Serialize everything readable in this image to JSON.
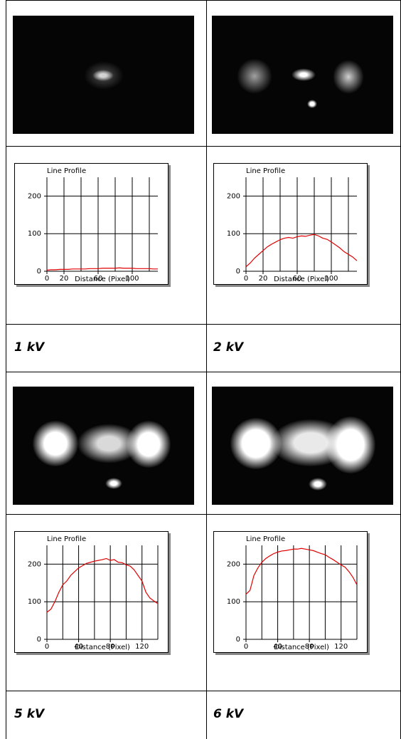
{
  "chart_data": [
    {
      "type": "line",
      "title": "Line Profile",
      "xlabel": "Distance (Pixel)",
      "xlim": [
        0,
        130
      ],
      "xticks": [
        0,
        20,
        60,
        100
      ],
      "xgrid": [
        20,
        40,
        60,
        80,
        100,
        120
      ],
      "ylim": [
        0,
        250
      ],
      "yticks": [
        0,
        100,
        200
      ],
      "x": [
        0,
        5,
        10,
        15,
        20,
        25,
        30,
        35,
        40,
        45,
        50,
        55,
        60,
        65,
        70,
        75,
        80,
        85,
        90,
        95,
        100,
        105,
        110,
        115,
        120,
        125,
        130
      ],
      "series": [
        {
          "color": "#e00000",
          "values": [
            3,
            4,
            4,
            5,
            5,
            5,
            6,
            6,
            6,
            6,
            7,
            7,
            7,
            8,
            8,
            8,
            8,
            9,
            8,
            8,
            8,
            7,
            7,
            7,
            7,
            6,
            6
          ]
        }
      ]
    },
    {
      "type": "line",
      "title": "Line Profile",
      "xlabel": "Distance (Pixel)",
      "xlim": [
        0,
        130
      ],
      "xticks": [
        0,
        20,
        60,
        100
      ],
      "xgrid": [
        20,
        40,
        60,
        80,
        100,
        120
      ],
      "ylim": [
        0,
        250
      ],
      "yticks": [
        0,
        100,
        200
      ],
      "x": [
        0,
        5,
        10,
        15,
        20,
        25,
        30,
        35,
        40,
        45,
        50,
        55,
        60,
        65,
        70,
        75,
        80,
        85,
        90,
        95,
        100,
        105,
        110,
        115,
        120,
        125,
        130
      ],
      "series": [
        {
          "color": "#e00000",
          "values": [
            12,
            22,
            35,
            45,
            55,
            65,
            72,
            78,
            84,
            88,
            90,
            88,
            92,
            94,
            93,
            96,
            98,
            94,
            88,
            85,
            78,
            70,
            62,
            52,
            45,
            38,
            28
          ]
        }
      ]
    },
    {
      "type": "line",
      "title": "Line Profile",
      "xlabel": "Distance (Pixel)",
      "xlim": [
        0,
        140
      ],
      "xticks": [
        0,
        40,
        80,
        120
      ],
      "xgrid": [
        20,
        40,
        60,
        80,
        100,
        120,
        140
      ],
      "ylim": [
        0,
        250
      ],
      "yticks": [
        0,
        100,
        200
      ],
      "x": [
        0,
        5,
        10,
        15,
        20,
        25,
        30,
        35,
        40,
        45,
        50,
        55,
        60,
        65,
        70,
        75,
        80,
        85,
        90,
        95,
        100,
        105,
        110,
        115,
        120,
        125,
        130,
        135,
        140
      ],
      "series": [
        {
          "color": "#e00000",
          "values": [
            72,
            80,
            100,
            125,
            145,
            155,
            170,
            180,
            190,
            196,
            202,
            205,
            208,
            210,
            212,
            215,
            210,
            212,
            205,
            204,
            198,
            195,
            185,
            170,
            155,
            125,
            110,
            102,
            95
          ]
        }
      ]
    },
    {
      "type": "line",
      "title": "Line Profile",
      "xlabel": "Distance (Pixel)",
      "xlim": [
        0,
        140
      ],
      "xticks": [
        0,
        40,
        80,
        120
      ],
      "xgrid": [
        20,
        40,
        60,
        80,
        100,
        120,
        140
      ],
      "ylim": [
        0,
        250
      ],
      "yticks": [
        0,
        100,
        200
      ],
      "x": [
        0,
        5,
        10,
        15,
        20,
        25,
        30,
        35,
        40,
        45,
        50,
        55,
        60,
        65,
        70,
        75,
        80,
        85,
        90,
        95,
        100,
        105,
        110,
        115,
        120,
        125,
        130,
        135,
        140
      ],
      "series": [
        {
          "color": "#e00000",
          "values": [
            120,
            130,
            170,
            190,
            205,
            215,
            222,
            228,
            232,
            235,
            236,
            238,
            240,
            240,
            242,
            240,
            238,
            236,
            232,
            228,
            225,
            218,
            212,
            205,
            198,
            192,
            180,
            165,
            145
          ]
        }
      ]
    }
  ],
  "captions": [
    "1 kV",
    "2 kV",
    "5 kV",
    "6 kV"
  ]
}
